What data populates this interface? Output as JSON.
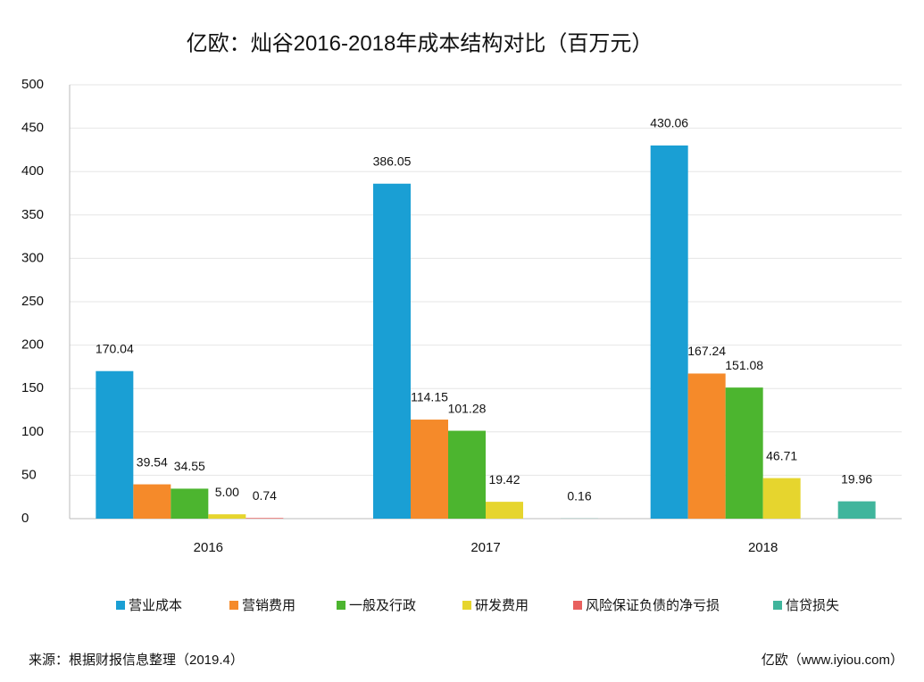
{
  "chart_data": {
    "type": "bar",
    "title": "亿欧：灿谷2016-2018年成本结构对比（百万元）",
    "categories": [
      "2016",
      "2017",
      "2018"
    ],
    "series": [
      {
        "name": "营业成本",
        "color": "#1a9fd4",
        "values": [
          170.04,
          386.05,
          430.06
        ]
      },
      {
        "name": "营销费用",
        "color": "#f58a2a",
        "values": [
          39.54,
          114.15,
          167.24
        ]
      },
      {
        "name": "一般及行政",
        "color": "#4cb52f",
        "values": [
          34.55,
          101.28,
          151.08
        ]
      },
      {
        "name": "研发费用",
        "color": "#e6d52e",
        "values": [
          5.0,
          19.42,
          46.71
        ],
        "value_labels": [
          "5.00",
          "19.42",
          "46.71"
        ]
      },
      {
        "name": "风险保证负债的净亏损",
        "color": "#e8605e",
        "values": [
          0.74,
          null,
          null
        ]
      },
      {
        "name": "信贷损失",
        "color": "#40b59c",
        "values": [
          null,
          0.16,
          19.96
        ]
      }
    ],
    "ylim": [
      0,
      500
    ],
    "yticks": [
      0,
      50,
      100,
      150,
      200,
      250,
      300,
      350,
      400,
      450,
      500
    ],
    "grid": true,
    "legend": "bottom",
    "source": "来源：根据财报信息整理（2019.4）",
    "credit": "亿欧（www.iyiou.com）"
  }
}
